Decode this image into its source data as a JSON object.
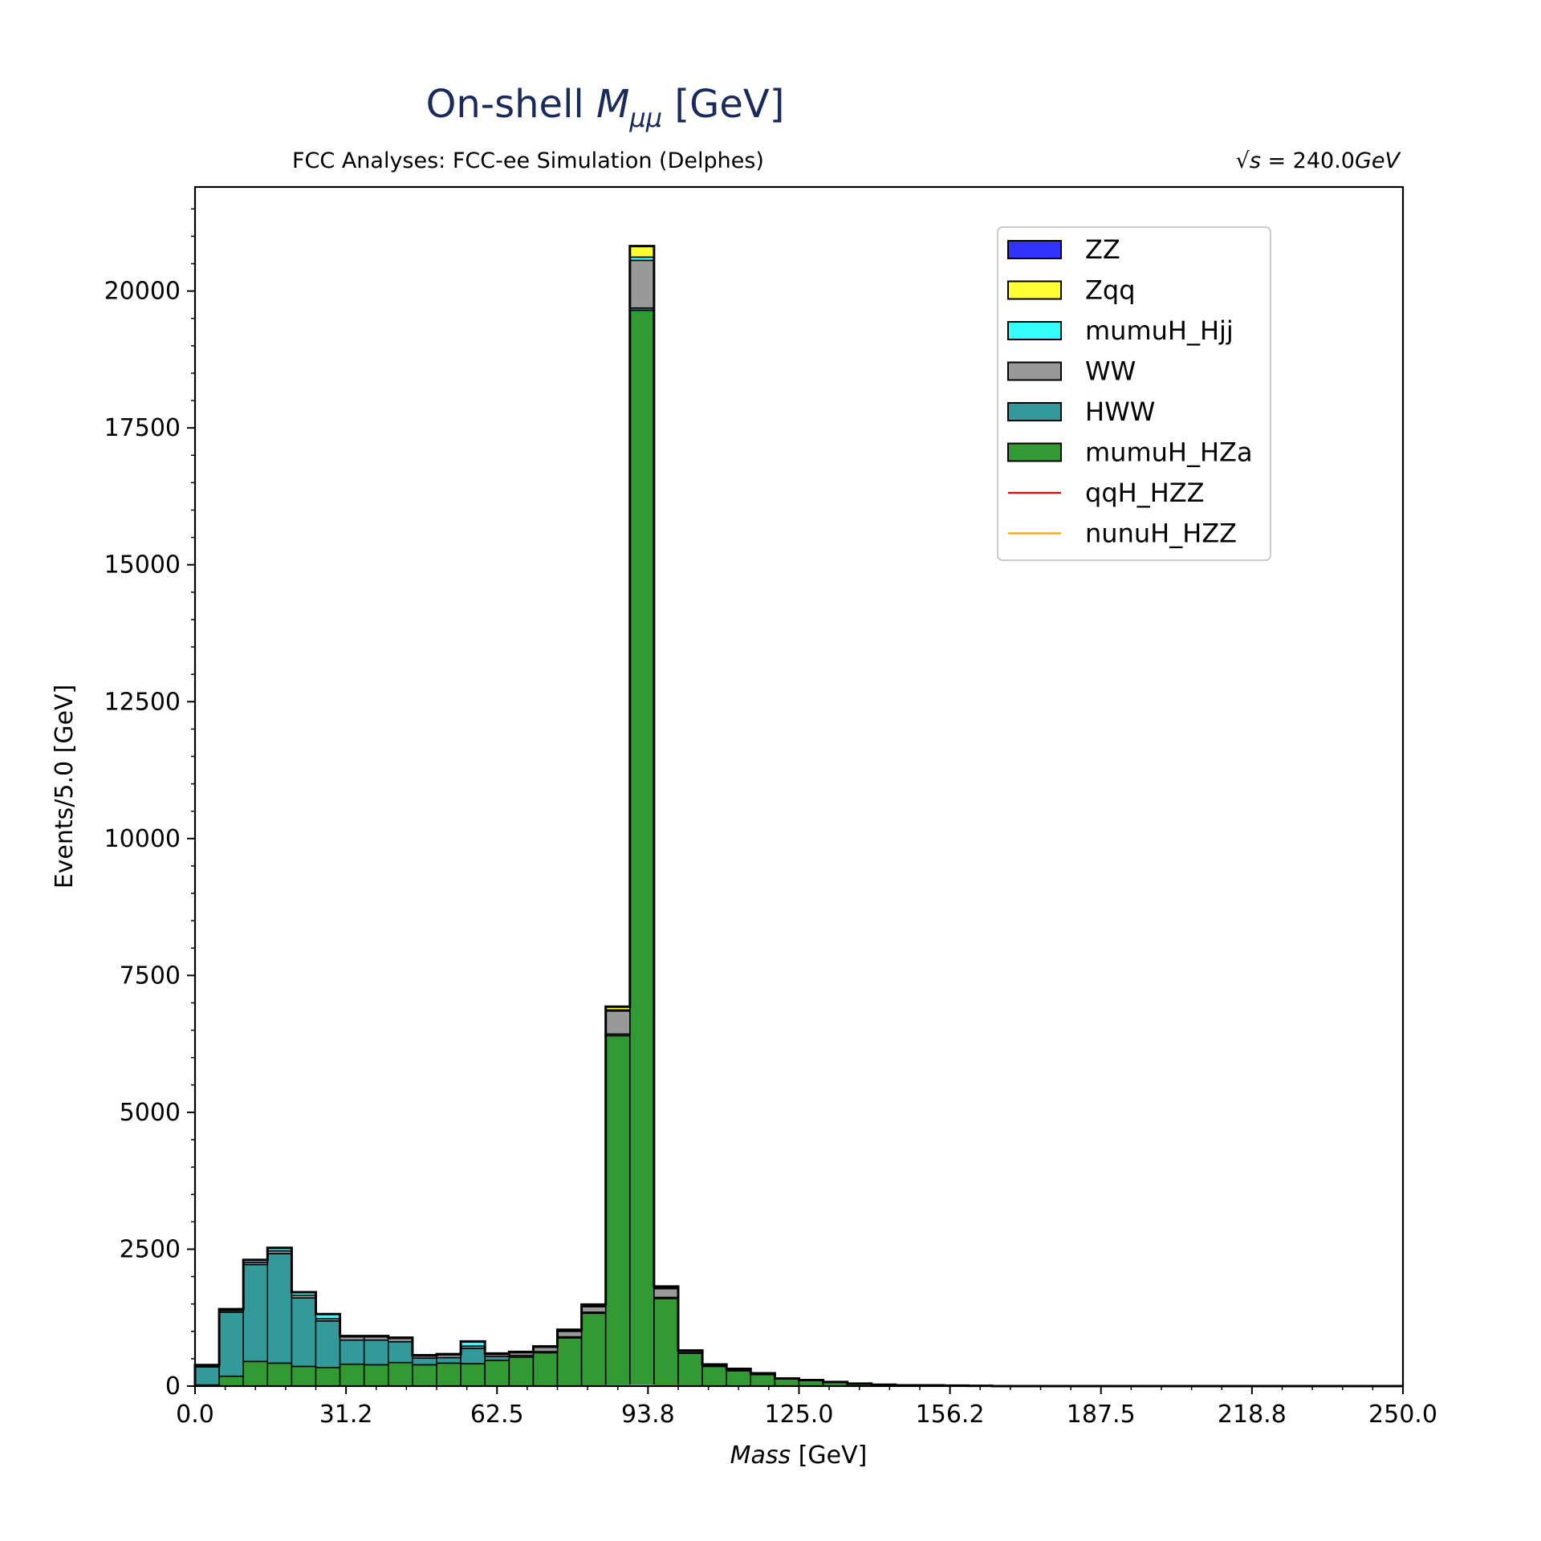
{
  "chart_data": {
    "type": "stacked-histogram",
    "title_main": "On-shell ",
    "title_symbol": "M",
    "title_subscript": "μμ",
    "title_unit": " [GeV]",
    "subtitle_left": "FCC Analyses: FCC-ee Simulation (Delphes)",
    "subtitle_right_symbol": "√s",
    "subtitle_right_value": " = 240.0",
    "subtitle_right_unit": "GeV",
    "xlabel_italic": "Mass",
    "xlabel_unit": " [GeV]",
    "ylabel": "Events/5.0 [GeV]",
    "xlim": [
      0,
      250
    ],
    "ylim": [
      0,
      21900
    ],
    "bin_width": 5,
    "xticks": [
      0,
      31.25,
      62.5,
      93.75,
      125,
      156.25,
      187.5,
      218.75,
      250
    ],
    "xtick_labels": [
      "0.0",
      "31.2",
      "62.5",
      "93.8",
      "125.0",
      "156.2",
      "187.5",
      "218.8",
      "250.0"
    ],
    "yticks": [
      0,
      2500,
      5000,
      7500,
      10000,
      12500,
      15000,
      17500,
      20000
    ],
    "ytick_labels": [
      "0",
      "2500",
      "5000",
      "7500",
      "10000",
      "12500",
      "15000",
      "17500",
      "20000"
    ],
    "legend_position": "upper-right",
    "series": [
      {
        "name": "mumuH_HZa",
        "color": "#339933",
        "kind": "fill",
        "values": [
          20,
          180,
          450,
          420,
          360,
          340,
          400,
          390,
          430,
          390,
          420,
          410,
          470,
          530,
          610,
          880,
          1330,
          6400,
          19650,
          1600,
          600,
          360,
          280,
          210,
          130,
          100,
          70,
          40,
          20,
          10,
          10,
          5,
          5,
          0,
          0,
          0,
          0,
          0,
          0,
          0,
          0,
          0,
          0,
          0,
          0,
          0,
          0,
          0,
          0,
          0
        ]
      },
      {
        "name": "HWW",
        "color": "#339999",
        "kind": "fill",
        "values": [
          330,
          1170,
          1770,
          2000,
          1250,
          850,
          440,
          450,
          380,
          120,
          100,
          280,
          70,
          30,
          20,
          20,
          20,
          30,
          40,
          20,
          10,
          5,
          5,
          5,
          0,
          0,
          0,
          0,
          0,
          0,
          0,
          0,
          0,
          0,
          0,
          0,
          0,
          0,
          0,
          0,
          0,
          0,
          0,
          0,
          0,
          0,
          0,
          0,
          0,
          0
        ]
      },
      {
        "name": "WW",
        "color": "#999999",
        "kind": "fill",
        "values": [
          20,
          30,
          40,
          50,
          50,
          40,
          60,
          60,
          60,
          40,
          50,
          40,
          40,
          50,
          80,
          100,
          100,
          420,
          870,
          160,
          30,
          20,
          20,
          15,
          10,
          10,
          5,
          5,
          5,
          5,
          5,
          5,
          0,
          0,
          0,
          0,
          0,
          0,
          0,
          0,
          0,
          0,
          0,
          0,
          0,
          0,
          0,
          0,
          0,
          0
        ]
      },
      {
        "name": "mumuH_Hjj",
        "color": "#33ffff",
        "kind": "fill",
        "values": [
          10,
          20,
          40,
          50,
          50,
          80,
          10,
          10,
          10,
          10,
          10,
          80,
          10,
          10,
          10,
          10,
          10,
          20,
          60,
          20,
          5,
          5,
          5,
          0,
          0,
          0,
          0,
          0,
          0,
          0,
          0,
          0,
          0,
          0,
          0,
          0,
          0,
          0,
          0,
          0,
          0,
          0,
          0,
          0,
          0,
          0,
          0,
          0,
          0,
          0
        ]
      },
      {
        "name": "Zqq",
        "color": "#ffff33",
        "kind": "fill",
        "values": [
          5,
          5,
          5,
          5,
          5,
          5,
          5,
          5,
          5,
          5,
          5,
          5,
          5,
          5,
          5,
          20,
          30,
          60,
          200,
          20,
          5,
          5,
          5,
          5,
          0,
          0,
          0,
          0,
          0,
          0,
          0,
          0,
          0,
          0,
          0,
          0,
          0,
          0,
          0,
          0,
          0,
          0,
          0,
          0,
          0,
          0,
          0,
          0,
          0,
          0
        ]
      },
      {
        "name": "ZZ",
        "color": "#3333ff",
        "kind": "fill",
        "values": [
          0,
          0,
          0,
          0,
          0,
          0,
          0,
          0,
          0,
          0,
          0,
          0,
          0,
          0,
          0,
          0,
          0,
          0,
          0,
          0,
          0,
          0,
          0,
          0,
          0,
          0,
          0,
          0,
          0,
          0,
          0,
          0,
          0,
          0,
          0,
          0,
          0,
          0,
          0,
          0,
          0,
          0,
          0,
          0,
          0,
          0,
          0,
          0,
          0,
          0
        ]
      },
      {
        "name": "qqH_HZZ",
        "color": "#ff0000",
        "kind": "line",
        "values": [
          0,
          0,
          0,
          0,
          0,
          0,
          0,
          0,
          0,
          0,
          0,
          0,
          0,
          0,
          0,
          0,
          2,
          10,
          15,
          5,
          0,
          0,
          0,
          0,
          0,
          0,
          0,
          0,
          0,
          0,
          0,
          0,
          0,
          0,
          0,
          0,
          0,
          0,
          0,
          0,
          0,
          0,
          0,
          0,
          0,
          0,
          0,
          0,
          0,
          0
        ]
      },
      {
        "name": "nunuH_HZZ",
        "color": "#ffa500",
        "kind": "line",
        "values": [
          0,
          0,
          0,
          0,
          0,
          0,
          0,
          0,
          0,
          0,
          0,
          0,
          0,
          0,
          0,
          0,
          2,
          8,
          12,
          4,
          0,
          0,
          0,
          0,
          0,
          0,
          0,
          0,
          0,
          0,
          0,
          0,
          0,
          0,
          0,
          0,
          0,
          0,
          0,
          0,
          0,
          0,
          0,
          0,
          0,
          0,
          0,
          0,
          0,
          0
        ]
      }
    ],
    "legend_order": [
      "ZZ",
      "Zqq",
      "mumuH_Hjj",
      "WW",
      "HWW",
      "mumuH_HZa",
      "qqH_HZZ",
      "nunuH_HZZ"
    ]
  }
}
